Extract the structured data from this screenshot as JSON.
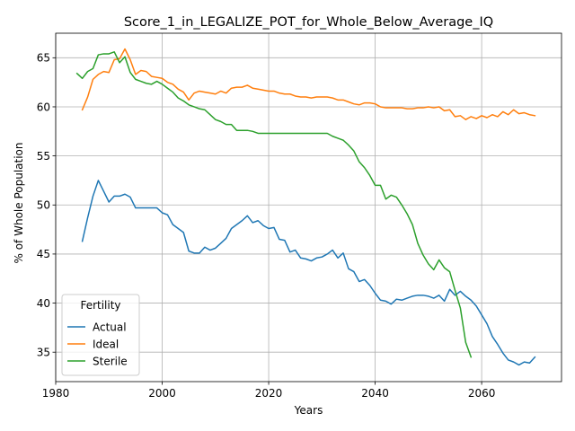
{
  "chart_data": {
    "type": "line",
    "title": "Score_1_in_LEGALIZE_POT_for_Whole_Below_Average_IQ",
    "xlabel": "Years",
    "ylabel": "% of Whole Population",
    "xlim": [
      1980,
      2075
    ],
    "ylim": [
      32,
      67.5
    ],
    "xticks": [
      1980,
      2000,
      2020,
      2040,
      2060
    ],
    "yticks": [
      35,
      40,
      45,
      50,
      55,
      60,
      65
    ],
    "grid": true,
    "legend": {
      "title": "Fertility",
      "placement": "lower-left"
    },
    "colors": {
      "Actual": "#1f77b4",
      "Ideal": "#ff7f0e",
      "Sterile": "#2ca02c"
    },
    "series": [
      {
        "name": "Actual",
        "x": [
          1985,
          1986,
          1987,
          1988,
          1989,
          1990,
          1991,
          1992,
          1993,
          1994,
          1995,
          1996,
          1997,
          1998,
          1999,
          2000,
          2001,
          2002,
          2003,
          2004,
          2005,
          2006,
          2007,
          2008,
          2009,
          2010,
          2011,
          2012,
          2013,
          2014,
          2015,
          2016,
          2017,
          2018,
          2019,
          2020,
          2021,
          2022,
          2023,
          2024,
          2025,
          2026,
          2027,
          2028,
          2029,
          2030,
          2031,
          2032,
          2033,
          2034,
          2035,
          2036,
          2037,
          2038,
          2039,
          2040,
          2041,
          2042,
          2043,
          2044,
          2045,
          2046,
          2047,
          2048,
          2049,
          2050,
          2051,
          2052,
          2053,
          2054,
          2055,
          2056,
          2057,
          2058,
          2059,
          2060,
          2061,
          2062,
          2063,
          2064,
          2065,
          2066,
          2067,
          2068,
          2069,
          2070
        ],
        "y": [
          46.3,
          48.7,
          50.9,
          52.5,
          51.4,
          50.3,
          50.9,
          50.9,
          51.1,
          50.8,
          49.7,
          49.7,
          49.7,
          49.7,
          49.7,
          49.2,
          49.0,
          48.0,
          47.6,
          47.2,
          45.3,
          45.1,
          45.1,
          45.7,
          45.4,
          45.6,
          46.1,
          46.6,
          47.6,
          48.0,
          48.4,
          48.9,
          48.2,
          48.4,
          47.9,
          47.6,
          47.7,
          46.5,
          46.4,
          45.2,
          45.4,
          44.6,
          44.5,
          44.3,
          44.6,
          44.7,
          45.0,
          45.4,
          44.6,
          45.1,
          43.5,
          43.2,
          42.2,
          42.4,
          41.8,
          41.0,
          40.3,
          40.2,
          39.9,
          40.4,
          40.3,
          40.5,
          40.7,
          40.8,
          40.8,
          40.7,
          40.5,
          40.8,
          40.2,
          41.4,
          40.8,
          41.2,
          40.7,
          40.3,
          39.7,
          38.8,
          37.9,
          36.6,
          35.8,
          34.9,
          34.2,
          34.0,
          33.7,
          34.0,
          33.9,
          34.5
        ]
      },
      {
        "name": "Ideal",
        "x": [
          1985,
          1986,
          1987,
          1988,
          1989,
          1990,
          1991,
          1992,
          1993,
          1994,
          1995,
          1996,
          1997,
          1998,
          1999,
          2000,
          2001,
          2002,
          2003,
          2004,
          2005,
          2006,
          2007,
          2008,
          2009,
          2010,
          2011,
          2012,
          2013,
          2014,
          2015,
          2016,
          2017,
          2018,
          2019,
          2020,
          2021,
          2022,
          2023,
          2024,
          2025,
          2026,
          2027,
          2028,
          2029,
          2030,
          2031,
          2032,
          2033,
          2034,
          2035,
          2036,
          2037,
          2038,
          2039,
          2040,
          2041,
          2042,
          2043,
          2044,
          2045,
          2046,
          2047,
          2048,
          2049,
          2050,
          2051,
          2052,
          2053,
          2054,
          2055,
          2056,
          2057,
          2058,
          2059,
          2060,
          2061,
          2062,
          2063,
          2064,
          2065,
          2066,
          2067,
          2068,
          2069,
          2070
        ],
        "y": [
          59.7,
          61.0,
          62.8,
          63.3,
          63.6,
          63.5,
          64.8,
          64.9,
          65.9,
          64.8,
          63.3,
          63.7,
          63.6,
          63.1,
          63.0,
          62.9,
          62.5,
          62.3,
          61.8,
          61.5,
          60.7,
          61.4,
          61.6,
          61.5,
          61.4,
          61.3,
          61.6,
          61.4,
          61.9,
          62.0,
          62.0,
          62.2,
          61.9,
          61.8,
          61.7,
          61.6,
          61.6,
          61.4,
          61.3,
          61.3,
          61.1,
          61.0,
          61.0,
          60.9,
          61.0,
          61.0,
          61.0,
          60.9,
          60.7,
          60.7,
          60.5,
          60.3,
          60.2,
          60.4,
          60.4,
          60.3,
          60.0,
          59.9,
          59.9,
          59.9,
          59.9,
          59.8,
          59.8,
          59.9,
          59.9,
          60.0,
          59.9,
          60.0,
          59.6,
          59.7,
          59.0,
          59.1,
          58.7,
          59.0,
          58.8,
          59.1,
          58.9,
          59.2,
          59.0,
          59.5,
          59.2,
          59.7,
          59.3,
          59.4,
          59.2,
          59.1
        ]
      },
      {
        "name": "Sterile",
        "x": [
          1984,
          1985,
          1986,
          1987,
          1988,
          1989,
          1990,
          1991,
          1992,
          1993,
          1994,
          1995,
          1996,
          1997,
          1998,
          1999,
          2000,
          2001,
          2002,
          2003,
          2004,
          2005,
          2006,
          2007,
          2008,
          2009,
          2010,
          2011,
          2012,
          2013,
          2014,
          2015,
          2016,
          2017,
          2018,
          2019,
          2020,
          2021,
          2022,
          2023,
          2024,
          2025,
          2026,
          2027,
          2028,
          2029,
          2030,
          2031,
          2032,
          2033,
          2034,
          2035,
          2036,
          2037,
          2038,
          2039,
          2040,
          2041,
          2042,
          2043,
          2044,
          2045,
          2046,
          2047,
          2048,
          2049,
          2050,
          2051,
          2052,
          2053,
          2054,
          2055,
          2056,
          2057,
          2058
        ],
        "y": [
          63.4,
          62.9,
          63.6,
          63.9,
          65.3,
          65.4,
          65.4,
          65.6,
          64.5,
          65.1,
          63.5,
          62.8,
          62.6,
          62.4,
          62.3,
          62.6,
          62.3,
          61.9,
          61.5,
          60.9,
          60.6,
          60.2,
          60.0,
          59.8,
          59.7,
          59.2,
          58.7,
          58.5,
          58.2,
          58.2,
          57.6,
          57.6,
          57.6,
          57.5,
          57.3,
          57.3,
          57.3,
          57.3,
          57.3,
          57.3,
          57.3,
          57.3,
          57.3,
          57.3,
          57.3,
          57.3,
          57.3,
          57.3,
          57.0,
          56.8,
          56.6,
          56.1,
          55.5,
          54.4,
          53.8,
          53.0,
          52.0,
          52.0,
          50.6,
          51.0,
          50.8,
          50.0,
          49.1,
          48.0,
          46.1,
          44.9,
          44.0,
          43.4,
          44.4,
          43.6,
          43.2,
          41.3,
          39.5,
          36.0,
          34.5
        ]
      }
    ]
  }
}
